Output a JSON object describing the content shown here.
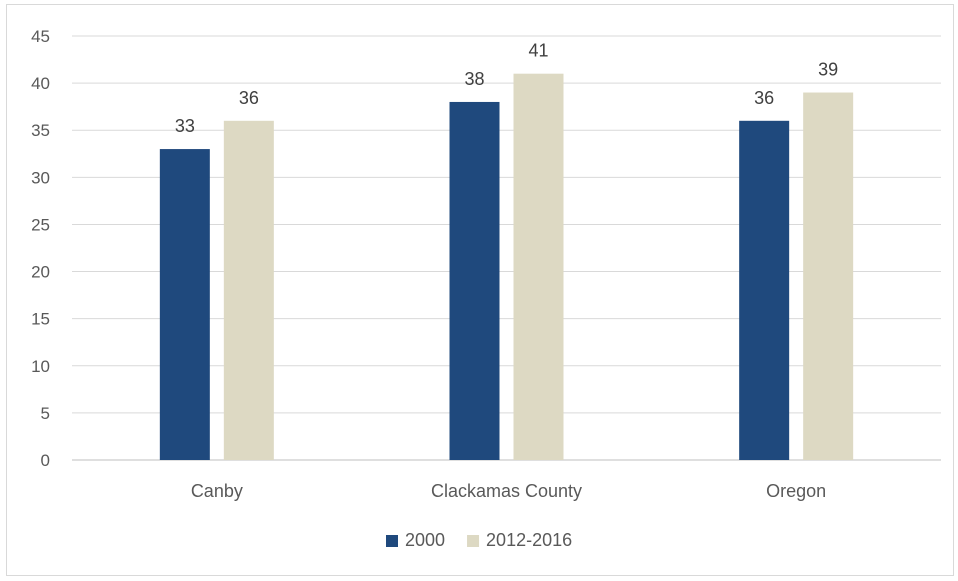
{
  "chart_data": {
    "type": "bar",
    "categories": [
      "Canby",
      "Clackamas County",
      "Oregon"
    ],
    "series": [
      {
        "name": "2000",
        "values": [
          33,
          38,
          36
        ],
        "color": "#1f497d"
      },
      {
        "name": "2012-2016",
        "values": [
          36,
          41,
          39
        ],
        "color": "#ddd9c3"
      }
    ],
    "ylim": [
      0,
      45
    ],
    "yticks": [
      0,
      5,
      10,
      15,
      20,
      25,
      30,
      35,
      40,
      45
    ],
    "grid": true,
    "legend_position": "bottom",
    "title": "",
    "xlabel": "",
    "ylabel": ""
  }
}
